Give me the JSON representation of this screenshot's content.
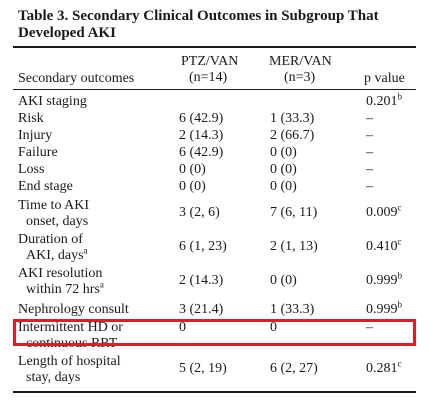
{
  "table": {
    "title": "Table 3.  Secondary Clinical Outcomes in Subgroup That Developed AKI",
    "header": {
      "col1": "Secondary outcomes",
      "col2_line1": "PTZ/VAN",
      "col2_line2": "(n=14)",
      "col3_line1": "MER/VAN",
      "col3_line2": "(n=3)",
      "col4": "p value"
    },
    "rows": [
      {
        "label": "AKI staging",
        "label2": "",
        "label_sup": "",
        "ptz": "",
        "mer": "",
        "p": "0.201",
        "p_sup": "b"
      },
      {
        "label": "Risk",
        "label2": "",
        "label_sup": "",
        "ptz": "6 (42.9)",
        "mer": "1 (33.3)",
        "p": "–",
        "p_sup": ""
      },
      {
        "label": "Injury",
        "label2": "",
        "label_sup": "",
        "ptz": "2 (14.3)",
        "mer": "2 (66.7)",
        "p": "–",
        "p_sup": ""
      },
      {
        "label": "Failure",
        "label2": "",
        "label_sup": "",
        "ptz": "6 (42.9)",
        "mer": "0 (0)",
        "p": "–",
        "p_sup": ""
      },
      {
        "label": "Loss",
        "label2": "",
        "label_sup": "",
        "ptz": "0 (0)",
        "mer": "0 (0)",
        "p": "–",
        "p_sup": ""
      },
      {
        "label": "End stage",
        "label2": "",
        "label_sup": "",
        "ptz": "0 (0)",
        "mer": "0 (0)",
        "p": "–",
        "p_sup": ""
      },
      {
        "label": "Time to AKI",
        "label2": "onset, days",
        "label_sup": "",
        "ptz": "3 (2, 6)",
        "mer": "7 (6, 11)",
        "p": "0.009",
        "p_sup": "c"
      },
      {
        "label": "Duration of",
        "label2": "AKI, days",
        "label_sup": "a",
        "ptz": "6 (1, 23)",
        "mer": "2 (1, 13)",
        "p": "0.410",
        "p_sup": "c"
      },
      {
        "label": "AKI resolution",
        "label2": "within 72 hrs",
        "label_sup": "a",
        "ptz": "2 (14.3)",
        "mer": "0 (0)",
        "p": "0.999",
        "p_sup": "b"
      },
      {
        "label": "Nephrology consult",
        "label2": "",
        "label_sup": "",
        "ptz": "3 (21.4)",
        "mer": "1 (33.3)",
        "p": "0.999",
        "p_sup": "b"
      },
      {
        "label": "Intermittent HD or",
        "label2": "continuous RRT",
        "label_sup": "",
        "ptz": "0",
        "mer": "0",
        "p": "–",
        "p_sup": ""
      },
      {
        "label": "Length of hospital",
        "label2": "stay, days",
        "label_sup": "",
        "ptz": "5 (2, 19)",
        "mer": "6 (2, 27)",
        "p": "0.281",
        "p_sup": "c"
      }
    ]
  }
}
